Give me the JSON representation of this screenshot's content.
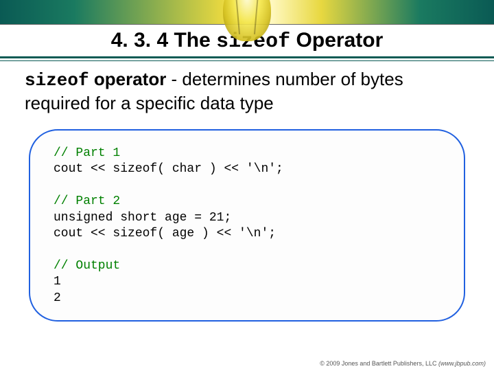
{
  "slide": {
    "section_number": "4. 3. 4",
    "title_prefix": "The",
    "title_keyword": "sizeof",
    "title_suffix": "Operator"
  },
  "definition": {
    "keyword": "sizeof",
    "opword": "operator",
    "rest": " - determines number of bytes required for a specific data type"
  },
  "code": {
    "part1_comment": "// Part 1",
    "part1_line": "cout << sizeof( char ) << '\\n';",
    "part2_comment": "// Part 2",
    "part2_line1": "unsigned short age = 21;",
    "part2_line2": "cout << sizeof( age ) << '\\n';",
    "output_comment": "// Output",
    "output_line1": "1",
    "output_line2": "2"
  },
  "footer": {
    "copyright": "© 2009 Jones and Bartlett Publishers, LLC",
    "url": "(www.jbpub.com)"
  },
  "colors": {
    "accent_green": "#0a5a54",
    "box_border": "#2060e0",
    "comment": "#008000",
    "keyword": "#0000ff"
  }
}
